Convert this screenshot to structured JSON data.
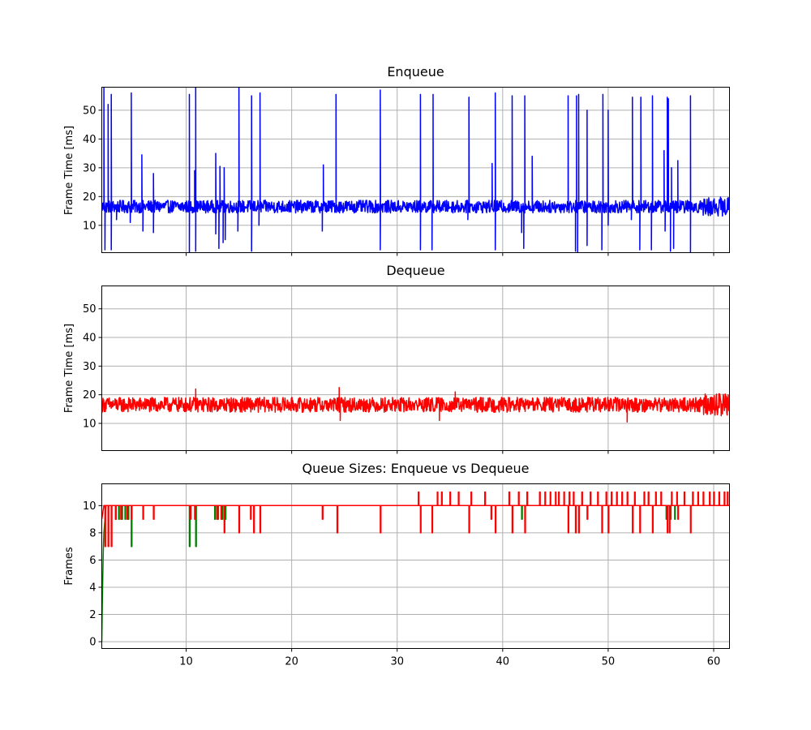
{
  "chart_data": [
    {
      "type": "line",
      "title": "Enqueue",
      "xlabel": "",
      "ylabel": "Frame Time [ms]",
      "xlim": [
        2,
        61.5
      ],
      "ylim": [
        0.5,
        58
      ],
      "xticks": [
        10,
        20,
        30,
        40,
        50,
        60
      ],
      "yticks": [
        10,
        20,
        30,
        40,
        50
      ],
      "grid": true,
      "series": [
        {
          "color": "#0000ff",
          "baseline": 16.5,
          "noise": 2.2,
          "spikes": [
            {
              "x": 2.2,
              "y": 58
            },
            {
              "x": 2.6,
              "y": 52
            },
            {
              "x": 2.9,
              "y": 55.5
            },
            {
              "x": 4.8,
              "y": 56
            },
            {
              "x": 5.8,
              "y": 34.5
            },
            {
              "x": 6.9,
              "y": 28
            },
            {
              "x": 10.3,
              "y": 55.5
            },
            {
              "x": 10.8,
              "y": 29
            },
            {
              "x": 10.9,
              "y": 58
            },
            {
              "x": 12.8,
              "y": 35
            },
            {
              "x": 13.2,
              "y": 30.5
            },
            {
              "x": 13.6,
              "y": 30
            },
            {
              "x": 15.0,
              "y": 58
            },
            {
              "x": 16.2,
              "y": 55
            },
            {
              "x": 17.0,
              "y": 56
            },
            {
              "x": 23.0,
              "y": 31
            },
            {
              "x": 24.2,
              "y": 55.5
            },
            {
              "x": 28.4,
              "y": 57
            },
            {
              "x": 32.2,
              "y": 55.5
            },
            {
              "x": 33.4,
              "y": 55.5
            },
            {
              "x": 36.8,
              "y": 54.5
            },
            {
              "x": 39.0,
              "y": 31.5
            },
            {
              "x": 39.3,
              "y": 56
            },
            {
              "x": 40.9,
              "y": 55
            },
            {
              "x": 42.1,
              "y": 55
            },
            {
              "x": 42.8,
              "y": 34
            },
            {
              "x": 46.2,
              "y": 55
            },
            {
              "x": 47.0,
              "y": 55
            },
            {
              "x": 47.2,
              "y": 55.5
            },
            {
              "x": 48.0,
              "y": 50
            },
            {
              "x": 49.5,
              "y": 55.5
            },
            {
              "x": 50.0,
              "y": 50
            },
            {
              "x": 52.3,
              "y": 54.5
            },
            {
              "x": 53.1,
              "y": 54.5
            },
            {
              "x": 54.2,
              "y": 55
            },
            {
              "x": 55.3,
              "y": 36
            },
            {
              "x": 55.6,
              "y": 54.5
            },
            {
              "x": 55.7,
              "y": 54
            },
            {
              "x": 56.0,
              "y": 30
            },
            {
              "x": 56.6,
              "y": 32.5
            },
            {
              "x": 57.8,
              "y": 55
            }
          ],
          "dips": [
            {
              "x": 2.3,
              "y": 1.5
            },
            {
              "x": 2.9,
              "y": 1.5
            },
            {
              "x": 3.4,
              "y": 12
            },
            {
              "x": 4.7,
              "y": 11
            },
            {
              "x": 5.9,
              "y": 8
            },
            {
              "x": 6.9,
              "y": 7.5
            },
            {
              "x": 10.3,
              "y": 0.5
            },
            {
              "x": 10.9,
              "y": 1
            },
            {
              "x": 12.8,
              "y": 7
            },
            {
              "x": 13.1,
              "y": 2
            },
            {
              "x": 13.5,
              "y": 4
            },
            {
              "x": 13.7,
              "y": 5
            },
            {
              "x": 14.9,
              "y": 8
            },
            {
              "x": 16.2,
              "y": 1
            },
            {
              "x": 16.9,
              "y": 10
            },
            {
              "x": 22.9,
              "y": 8
            },
            {
              "x": 28.4,
              "y": 1.5
            },
            {
              "x": 32.2,
              "y": 1.5
            },
            {
              "x": 33.3,
              "y": 1.5
            },
            {
              "x": 36.7,
              "y": 12
            },
            {
              "x": 39.3,
              "y": 1.5
            },
            {
              "x": 41.8,
              "y": 7.5
            },
            {
              "x": 42.0,
              "y": 2
            },
            {
              "x": 46.9,
              "y": 1
            },
            {
              "x": 47.1,
              "y": 0.5
            },
            {
              "x": 48.0,
              "y": 3
            },
            {
              "x": 49.4,
              "y": 1.5
            },
            {
              "x": 50.0,
              "y": 10
            },
            {
              "x": 52.2,
              "y": 12
            },
            {
              "x": 53.0,
              "y": 1.5
            },
            {
              "x": 54.1,
              "y": 1.5
            },
            {
              "x": 55.4,
              "y": 8
            },
            {
              "x": 55.9,
              "y": 1
            },
            {
              "x": 56.2,
              "y": 2
            },
            {
              "x": 57.8,
              "y": 0.5
            }
          ]
        }
      ]
    },
    {
      "type": "line",
      "title": "Dequeue",
      "xlabel": "",
      "ylabel": "Frame Time [ms]",
      "xlim": [
        2,
        61.5
      ],
      "ylim": [
        0.5,
        58
      ],
      "xticks": [
        10,
        20,
        30,
        40,
        50,
        60
      ],
      "yticks": [
        10,
        20,
        30,
        40,
        50
      ],
      "grid": true,
      "series": [
        {
          "color": "#ff0000",
          "baseline": 16.5,
          "noise": 2.6,
          "spikes": [
            {
              "x": 10.9,
              "y": 22
            },
            {
              "x": 24.5,
              "y": 22.5
            },
            {
              "x": 35.5,
              "y": 21
            }
          ],
          "dips": [
            {
              "x": 24.6,
              "y": 11
            },
            {
              "x": 34.0,
              "y": 11
            },
            {
              "x": 51.8,
              "y": 10.5
            }
          ]
        }
      ]
    },
    {
      "type": "line",
      "title": "Queue Sizes: Enqueue vs Dequeue",
      "xlabel": "",
      "ylabel": "Frames",
      "xlim": [
        2,
        61.5
      ],
      "ylim": [
        -0.5,
        11.6
      ],
      "xticks": [
        10,
        20,
        30,
        40,
        50,
        60
      ],
      "yticks": [
        0,
        2,
        4,
        6,
        8,
        10
      ],
      "grid": true,
      "series": [
        {
          "color": "#008000",
          "level": 10,
          "rampup": [
            [
              2.0,
              0
            ],
            [
              2.05,
              3
            ],
            [
              2.1,
              5
            ],
            [
              2.15,
              7
            ],
            [
              2.2,
              8
            ],
            [
              2.3,
              9
            ],
            [
              2.4,
              10
            ]
          ],
          "drops": [
            {
              "x": 3.3,
              "y": 9
            },
            {
              "x": 3.6,
              "y": 9
            },
            {
              "x": 3.9,
              "y": 9
            },
            {
              "x": 4.2,
              "y": 9
            },
            {
              "x": 4.5,
              "y": 9
            },
            {
              "x": 4.8,
              "y": 7
            },
            {
              "x": 10.3,
              "y": 7
            },
            {
              "x": 10.9,
              "y": 7
            },
            {
              "x": 12.7,
              "y": 9
            },
            {
              "x": 13.0,
              "y": 9
            },
            {
              "x": 13.4,
              "y": 9
            },
            {
              "x": 13.7,
              "y": 9
            },
            {
              "x": 41.8,
              "y": 9
            },
            {
              "x": 55.5,
              "y": 9
            },
            {
              "x": 55.9,
              "y": 9
            },
            {
              "x": 56.3,
              "y": 9
            }
          ]
        },
        {
          "color": "#ff0000",
          "level": 10,
          "rampup": [
            [
              2.0,
              9
            ],
            [
              2.2,
              10
            ]
          ],
          "drops": [
            {
              "x": 2.3,
              "y": 7
            },
            {
              "x": 2.6,
              "y": 7
            },
            {
              "x": 2.9,
              "y": 7
            },
            {
              "x": 3.3,
              "y": 9
            },
            {
              "x": 3.8,
              "y": 9
            },
            {
              "x": 4.4,
              "y": 9
            },
            {
              "x": 4.8,
              "y": 9
            },
            {
              "x": 5.9,
              "y": 9
            },
            {
              "x": 6.9,
              "y": 9
            },
            {
              "x": 10.4,
              "y": 9
            },
            {
              "x": 10.8,
              "y": 9
            },
            {
              "x": 12.9,
              "y": 9
            },
            {
              "x": 13.3,
              "y": 9
            },
            {
              "x": 13.6,
              "y": 8
            },
            {
              "x": 15.0,
              "y": 8
            },
            {
              "x": 16.1,
              "y": 9
            },
            {
              "x": 16.4,
              "y": 8
            },
            {
              "x": 17.0,
              "y": 8
            },
            {
              "x": 22.9,
              "y": 9
            },
            {
              "x": 24.3,
              "y": 8
            },
            {
              "x": 28.4,
              "y": 8
            },
            {
              "x": 32.2,
              "y": 8
            },
            {
              "x": 33.3,
              "y": 8
            },
            {
              "x": 36.8,
              "y": 8
            },
            {
              "x": 38.9,
              "y": 9
            },
            {
              "x": 39.3,
              "y": 8
            },
            {
              "x": 40.9,
              "y": 8
            },
            {
              "x": 42.1,
              "y": 8
            },
            {
              "x": 46.2,
              "y": 8
            },
            {
              "x": 46.9,
              "y": 8
            },
            {
              "x": 47.2,
              "y": 8
            },
            {
              "x": 48.0,
              "y": 9
            },
            {
              "x": 49.4,
              "y": 8
            },
            {
              "x": 50.0,
              "y": 8
            },
            {
              "x": 52.3,
              "y": 8
            },
            {
              "x": 53.0,
              "y": 8
            },
            {
              "x": 54.2,
              "y": 8
            },
            {
              "x": 55.6,
              "y": 8
            },
            {
              "x": 55.8,
              "y": 8
            },
            {
              "x": 56.6,
              "y": 9
            },
            {
              "x": 57.8,
              "y": 8
            }
          ],
          "peaks": [
            32.0,
            33.8,
            34.2,
            35.0,
            35.8,
            37.0,
            38.3,
            40.6,
            41.5,
            42.3,
            43.5,
            44.0,
            44.5,
            45.0,
            45.3,
            45.8,
            46.3,
            46.7,
            47.5,
            48.3,
            49.0,
            49.8,
            50.3,
            50.8,
            51.3,
            51.8,
            52.5,
            53.4,
            53.8,
            54.5,
            55.0,
            56.0,
            56.5,
            57.2,
            58.0,
            58.5,
            59.0,
            59.6,
            60.0,
            60.5,
            61.0,
            61.3
          ]
        }
      ]
    }
  ]
}
